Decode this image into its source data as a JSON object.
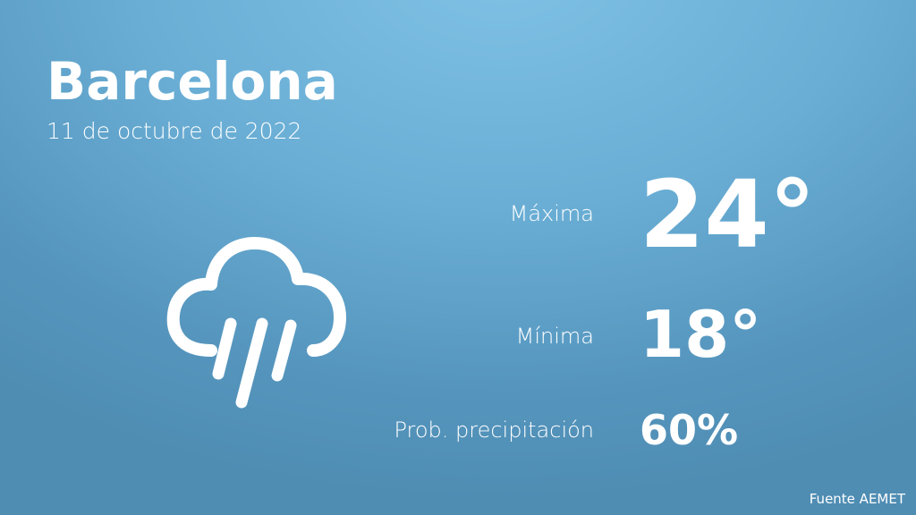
{
  "city": "Barcelona",
  "date": "11 de octubre de 2022",
  "weather_icon": "rain-cloud-icon",
  "max": {
    "label": "Máxima",
    "value": "24°"
  },
  "min": {
    "label": "Mínima",
    "value": "18°"
  },
  "precip": {
    "label": "Prob. precipitación",
    "value": "60%"
  },
  "source": "Fuente AEMET"
}
